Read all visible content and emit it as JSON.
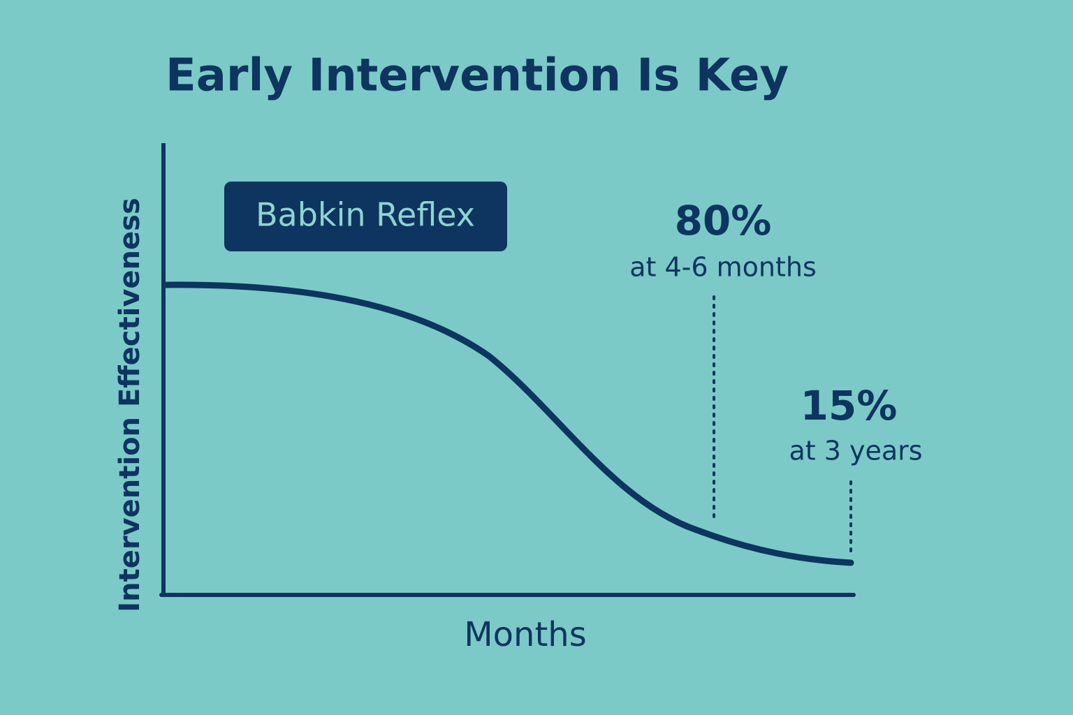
{
  "title": "Early Intervention Is Key",
  "y_axis_label": "Intervention Effectiveness",
  "x_axis_label": "Months",
  "curve_label": "Babkin Reflex",
  "annotations": [
    {
      "value": "80%",
      "caption": "at 4-6 months"
    },
    {
      "value": "15%",
      "caption": "at 3 years"
    }
  ]
}
